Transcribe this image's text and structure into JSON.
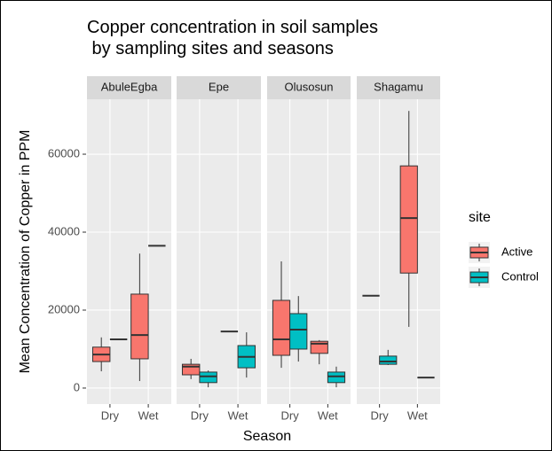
{
  "chart_data": {
    "type": "boxplot",
    "title": "Copper concentration in soil samples\n by sampling sites and seasons",
    "x_label": "Season",
    "y_label": "Mean Concentration of Copper in PPM",
    "legend_title": "site",
    "legend_position": "right",
    "facets": [
      "AbuleEgba",
      "Epe",
      "Olusosun",
      "Shagamu"
    ],
    "categories": [
      "Dry",
      "Wet"
    ],
    "ylim": [
      -4100,
      74100
    ],
    "yticks": [
      0,
      20000,
      40000,
      60000
    ],
    "grid": true,
    "series": [
      {
        "name": "Active",
        "color": "#f8766d",
        "boxes": [
          [
            {
              "min": 4300,
              "q1": 6800,
              "median": 8600,
              "q3": 10500,
              "max": 13000
            },
            {
              "min": 1800,
              "q1": 7500,
              "median": 13600,
              "q3": 24100,
              "max": 34500
            }
          ],
          [
            {
              "min": 2300,
              "q1": 3400,
              "median": 5500,
              "q3": 6100,
              "max": 7500
            },
            {
              "median": 14500
            }
          ],
          [
            {
              "min": 5200,
              "q1": 8400,
              "median": 12500,
              "q3": 22500,
              "max": 32500
            },
            {
              "min": 6100,
              "q1": 8900,
              "median": 11400,
              "q3": 12000,
              "max": 12300
            }
          ],
          [
            {
              "median": 23700
            },
            {
              "min": 15700,
              "q1": 29500,
              "median": 43600,
              "q3": 57000,
              "max": 71100
            }
          ]
        ]
      },
      {
        "name": "Control",
        "color": "#00bfc4",
        "boxes": [
          [
            {
              "median": 12500
            },
            {
              "median": 36500
            }
          ],
          [
            {
              "min": 200,
              "q1": 1400,
              "median": 3000,
              "q3": 4100,
              "max": 4500
            },
            {
              "min": 2700,
              "q1": 5200,
              "median": 8000,
              "q3": 10900,
              "max": 14300
            }
          ],
          [
            {
              "min": 6800,
              "q1": 10000,
              "median": 15000,
              "q3": 19100,
              "max": 23600
            },
            {
              "min": 200,
              "q1": 1400,
              "median": 3000,
              "q3": 4100,
              "max": 5500
            }
          ],
          [
            {
              "min": 5900,
              "q1": 6100,
              "median": 6800,
              "q3": 8200,
              "max": 9800
            },
            {
              "median": 2700
            }
          ]
        ]
      }
    ]
  }
}
